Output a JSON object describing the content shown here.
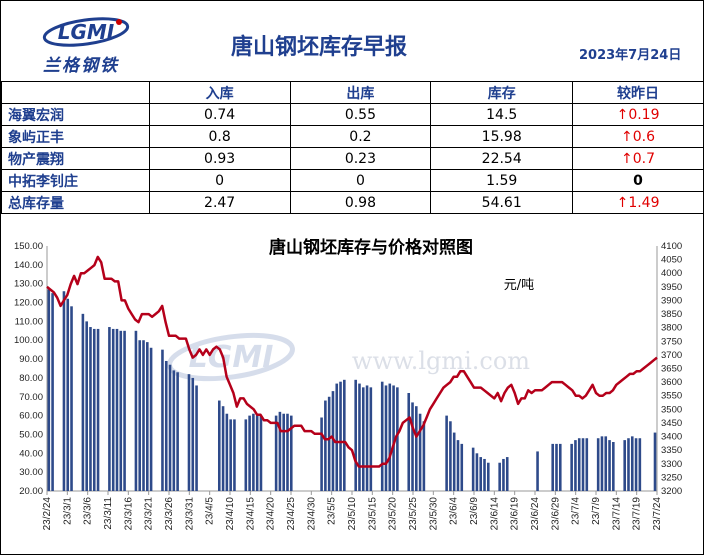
{
  "header": {
    "title": "唐山钢坯库存早报",
    "date": "2023年7月24日",
    "logo_mark": "LGMI",
    "logo_text": "兰格钢铁"
  },
  "table": {
    "columns": [
      "",
      "入库",
      "出库",
      "库存",
      "较昨日"
    ],
    "rows": [
      {
        "name": "海翼宏润",
        "in": "0.74",
        "out": "0.55",
        "stock": "14.5",
        "change": "↑0.19",
        "dir": "up"
      },
      {
        "name": "象屿正丰",
        "in": "0.8",
        "out": "0.2",
        "stock": "15.98",
        "change": "↑0.6",
        "dir": "up"
      },
      {
        "name": "物产震翔",
        "in": "0.93",
        "out": "0.23",
        "stock": "22.54",
        "change": "↑0.7",
        "dir": "up"
      },
      {
        "name": "中拓李钊庄",
        "in": "0",
        "out": "0",
        "stock": "1.59",
        "change": "0",
        "dir": "zero"
      },
      {
        "name": "总库存量",
        "in": "2.47",
        "out": "0.98",
        "stock": "54.61",
        "change": "↑1.49",
        "dir": "up"
      }
    ]
  },
  "chart_data": {
    "type": "bar",
    "title": "唐山钢坯库存与价格对照图",
    "unit_label": "元/吨",
    "watermark": "www.lgmi.com",
    "colors": {
      "bar": "#2e4a8a",
      "line": "#b5001a"
    },
    "ylim": [
      20,
      150
    ],
    "y2lim": [
      3200,
      4100
    ],
    "yticks": [
      "20.00",
      "30.00",
      "40.00",
      "50.00",
      "60.00",
      "70.00",
      "80.00",
      "90.00",
      "100.00",
      "110.00",
      "120.00",
      "130.00",
      "140.00",
      "150.00"
    ],
    "y2ticks": [
      "3200",
      "3250",
      "3300",
      "3350",
      "3400",
      "3450",
      "3500",
      "3550",
      "3600",
      "3650",
      "3700",
      "3750",
      "3800",
      "3850",
      "3900",
      "3950",
      "4000",
      "4050",
      "4100"
    ],
    "xlabels": [
      "23/2/24",
      "23/3/1",
      "23/3/6",
      "23/3/11",
      "23/3/16",
      "23/3/21",
      "23/3/26",
      "23/3/31",
      "23/4/5",
      "23/4/10",
      "23/4/15",
      "23/4/20",
      "23/4/25",
      "23/4/30",
      "23/5/5",
      "23/5/10",
      "23/5/15",
      "23/5/20",
      "23/5/25",
      "23/5/30",
      "23/6/4",
      "23/6/9",
      "23/6/14",
      "23/6/19",
      "23/6/24",
      "23/6/29",
      "23/7/4",
      "23/7/9",
      "23/7/14",
      "23/7/19",
      "23/7/24"
    ],
    "bars": [
      127,
      125,
      null,
      null,
      126,
      122,
      118,
      null,
      null,
      114,
      110,
      107,
      106,
      106,
      null,
      null,
      107,
      106,
      106,
      105,
      105,
      null,
      null,
      105,
      100,
      100,
      99,
      96,
      null,
      null,
      95,
      89,
      87,
      84,
      83,
      null,
      null,
      82,
      80,
      76,
      null,
      null,
      null,
      null,
      null,
      68,
      65,
      61,
      58,
      58,
      null,
      null,
      58,
      60,
      61,
      60,
      60,
      null,
      null,
      null,
      60,
      62,
      61,
      61,
      60,
      null,
      null,
      null,
      null,
      null,
      null,
      null,
      59,
      68,
      70,
      73,
      77,
      78,
      79,
      null,
      null,
      79,
      77,
      75,
      76,
      75,
      null,
      null,
      78,
      76,
      77,
      76,
      75,
      null,
      null,
      72,
      67,
      65,
      61,
      57,
      null,
      null,
      null,
      null,
      null,
      60,
      57,
      51,
      47,
      45,
      null,
      null,
      43,
      40,
      38,
      37,
      35,
      null,
      null,
      35,
      37,
      38,
      null,
      null,
      null,
      null,
      null,
      null,
      null,
      41,
      null,
      null,
      null,
      45,
      45,
      45,
      null,
      null,
      45,
      47,
      48,
      48,
      48,
      null,
      null,
      48,
      49,
      49,
      47,
      46,
      null,
      null,
      47,
      48,
      49,
      48,
      48,
      null,
      null,
      null,
      51
    ],
    "price": [
      3950,
      3940,
      3930,
      3910,
      3880,
      3900,
      3920,
      3960,
      3990,
      3960,
      4000,
      4000,
      4010,
      4020,
      4030,
      4060,
      4040,
      3980,
      3980,
      3980,
      3970,
      3970,
      3900,
      3900,
      3870,
      3850,
      3830,
      3820,
      3850,
      3850,
      3850,
      3840,
      3850,
      3860,
      3880,
      3820,
      3770,
      3770,
      3770,
      3760,
      3760,
      3760,
      3720,
      3690,
      3700,
      3720,
      3700,
      3720,
      3700,
      3720,
      3730,
      3720,
      3690,
      3620,
      3590,
      3560,
      3510,
      3540,
      3540,
      3520,
      3510,
      3500,
      3480,
      3480,
      3460,
      3460,
      3450,
      3450,
      3450,
      3420,
      3420,
      3420,
      3430,
      3440,
      3440,
      3440,
      3420,
      3420,
      3420,
      3410,
      3410,
      3410,
      3390,
      3390,
      3400,
      3380,
      3380,
      3380,
      3380,
      3360,
      3350,
      3310,
      3290,
      3290,
      3290,
      3290,
      3290,
      3290,
      3290,
      3300,
      3300,
      3320,
      3360,
      3400,
      3420,
      3450,
      3460,
      3470,
      3430,
      3400,
      3420,
      3440,
      3470,
      3500,
      3520,
      3540,
      3560,
      3580,
      3590,
      3600,
      3620,
      3620,
      3640,
      3640,
      3620,
      3600,
      3580,
      3580,
      3580,
      3570,
      3560,
      3550,
      3540,
      3560,
      3530,
      3560,
      3580,
      3590,
      3560,
      3520,
      3540,
      3540,
      3570,
      3560,
      3570,
      3570,
      3570,
      3580,
      3590,
      3600,
      3600,
      3600,
      3600,
      3590,
      3580,
      3570,
      3550,
      3550,
      3540,
      3550,
      3570,
      3590,
      3560,
      3550,
      3550,
      3560,
      3560,
      3570,
      3590,
      3600,
      3610,
      3620,
      3630,
      3630,
      3640,
      3640,
      3650,
      3660,
      3670,
      3680,
      3690
    ]
  }
}
